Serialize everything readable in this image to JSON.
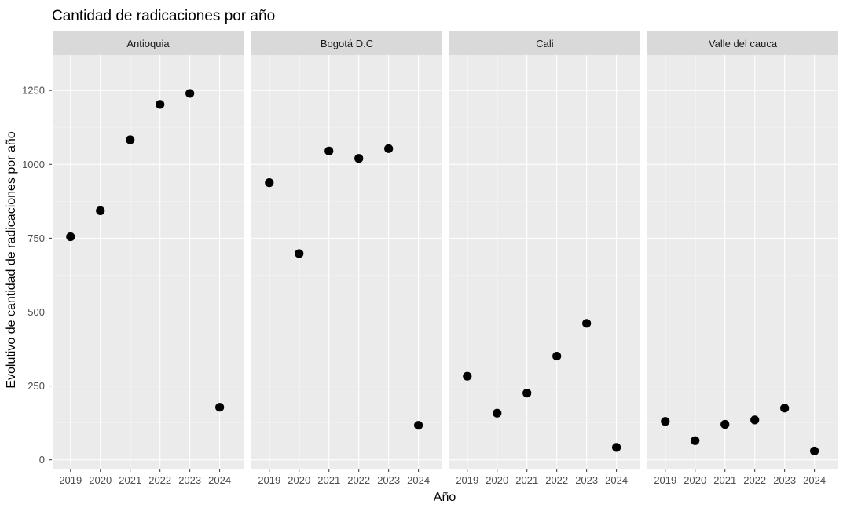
{
  "chart_data": {
    "type": "scatter",
    "title": "Cantidad de radicaciones por año",
    "xlabel": "Año",
    "ylabel": "Evolutivo de cantidad de radicaciones por año",
    "x": [
      "2019",
      "2020",
      "2021",
      "2022",
      "2023",
      "2024"
    ],
    "yticks": [
      0,
      250,
      500,
      750,
      1000,
      1250
    ],
    "ylim": [
      -30,
      1370
    ],
    "grid": true,
    "facets": [
      {
        "label": "Antioquia",
        "values": [
          755,
          843,
          1083,
          1203,
          1240,
          178
        ]
      },
      {
        "label": "Bogotá D.C",
        "values": [
          938,
          698,
          1045,
          1020,
          1053,
          117
        ]
      },
      {
        "label": "Cali",
        "values": [
          283,
          158,
          226,
          351,
          462,
          42
        ]
      },
      {
        "label": "Valle del cauca",
        "values": [
          130,
          65,
          120,
          135,
          175,
          30
        ]
      }
    ],
    "colors": {
      "panel": "#ebebeb",
      "strip": "#d9d9d9",
      "grid_major": "#ffffff",
      "grid_minor": "#f4f4f4",
      "point": "#000000",
      "tick_mark": "#333333"
    }
  }
}
